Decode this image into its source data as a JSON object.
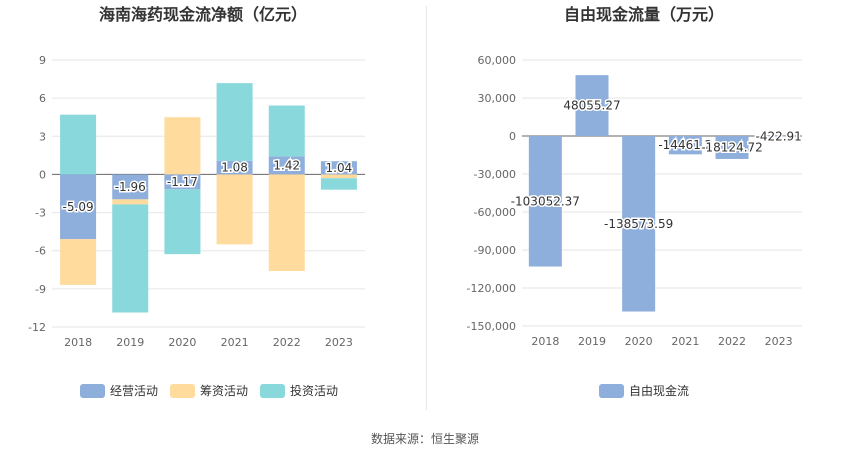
{
  "source_text": "数据来源：恒生聚源",
  "chart_data": [
    {
      "type": "bar",
      "stacked": true,
      "title": "海南海药现金流净额（亿元）",
      "categories": [
        "2018",
        "2019",
        "2020",
        "2021",
        "2022",
        "2023"
      ],
      "ylim": [
        -12,
        9
      ],
      "yticks": [
        9,
        6,
        3,
        0,
        -3,
        -6,
        -9,
        -12
      ],
      "grid": true,
      "legend_position": "bottom",
      "series": [
        {
          "name": "经营活动",
          "color": "#8eaedb",
          "values": [
            -5.09,
            -1.96,
            -1.17,
            1.08,
            1.42,
            1.04
          ]
        },
        {
          "name": "筹资活动",
          "color": "#ffdb9e",
          "values": [
            -3.6,
            -0.4,
            4.5,
            -5.5,
            -7.6,
            -0.3
          ]
        },
        {
          "name": "投资活动",
          "color": "#88d8dc",
          "values": [
            4.7,
            -8.5,
            -5.1,
            6.1,
            4.0,
            -0.9
          ]
        }
      ],
      "data_labels": [
        "-5.09",
        "-1.96",
        "-1.17",
        "1.08",
        "1.42",
        "1.04"
      ]
    },
    {
      "type": "bar",
      "title": "自由现金流量（万元）",
      "categories": [
        "2018",
        "2019",
        "2020",
        "2021",
        "2022",
        "2023"
      ],
      "ylim": [
        -150000,
        60000
      ],
      "yticks": [
        60000,
        30000,
        0,
        -30000,
        -60000,
        -90000,
        -120000,
        -150000
      ],
      "ytick_labels": [
        "60,000",
        "30,000",
        "0",
        "-30,000",
        "-60,000",
        "-90,000",
        "-120,000",
        "-150,000"
      ],
      "grid": true,
      "legend_position": "bottom",
      "series": [
        {
          "name": "自由现金流",
          "color": "#8eaedb",
          "values": [
            -103052.37,
            48055.27,
            -138573.59,
            -14461.2,
            -18124.72,
            -422.91
          ]
        }
      ],
      "data_labels": [
        "-103052.37",
        "48055.27",
        "-138573.59",
        "-14461.2",
        "-18124.72",
        "-422.91"
      ]
    }
  ]
}
